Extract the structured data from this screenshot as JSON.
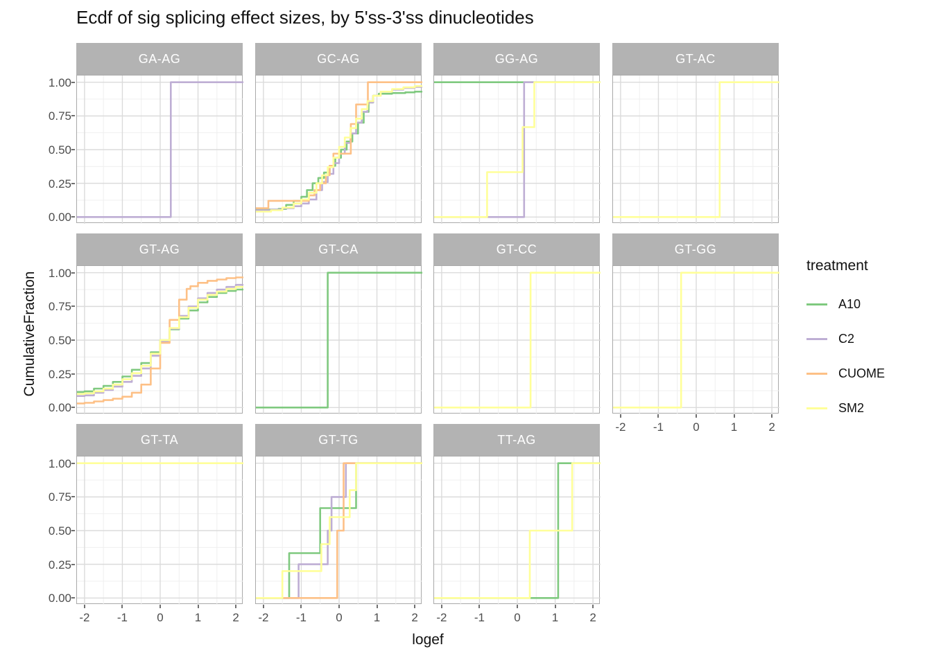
{
  "title": "Ecdf of sig splicing effect sizes, by 5'ss-3'ss dinucleotides",
  "legend": {
    "title": "treatment",
    "entries": [
      {
        "name": "A10",
        "color": "#7FC97F"
      },
      {
        "name": "C2",
        "color": "#BEAED4"
      },
      {
        "name": "CUOME",
        "color": "#FDC086"
      },
      {
        "name": "SM2",
        "color": "#FFFF99"
      }
    ]
  },
  "chart_data": {
    "type": "line",
    "step": true,
    "title": "Ecdf of sig splicing effect sizes, by 5'ss-3'ss dinucleotides",
    "xlabel": "logef",
    "ylabel": "CumulativeFraction",
    "x_domain": [
      -2.2,
      2.2
    ],
    "y_domain": [
      -0.05,
      1.05
    ],
    "x_ticks": [
      {
        "v": -2,
        "label": "-2"
      },
      {
        "v": -1,
        "label": "-1"
      },
      {
        "v": 0,
        "label": "0"
      },
      {
        "v": 1,
        "label": "1"
      },
      {
        "v": 2,
        "label": "2"
      }
    ],
    "y_ticks": [
      {
        "v": 0.0,
        "label": "0.00"
      },
      {
        "v": 0.25,
        "label": "0.25"
      },
      {
        "v": 0.5,
        "label": "0.50"
      },
      {
        "v": 0.75,
        "label": "0.75"
      },
      {
        "v": 1.0,
        "label": "1.00"
      }
    ],
    "x_minor": [
      -1.5,
      -0.5,
      0.5,
      1.5
    ],
    "y_minor": [
      0.125,
      0.375,
      0.625,
      0.875
    ],
    "grid": {
      "major_color": "#dbdbdb",
      "minor_color": "#efefef"
    },
    "legend_position": "right",
    "series_colors": {
      "A10": "#7FC97F",
      "C2": "#BEAED4",
      "CUOME": "#FDC086",
      "SM2": "#FFFF99"
    },
    "facets": [
      {
        "name": "GA-AG",
        "row": 0,
        "col": 0,
        "show_x_axis": false,
        "series": [
          {
            "name": "C2",
            "points": [
              [
                -2.2,
                0
              ],
              [
                0.28,
                1
              ]
            ]
          }
        ]
      },
      {
        "name": "GC-AG",
        "row": 0,
        "col": 1,
        "show_x_axis": false,
        "series": [
          {
            "name": "A10",
            "points": [
              [
                -2.2,
                0.055
              ],
              [
                -1.6,
                0.06
              ],
              [
                -1.4,
                0.09
              ],
              [
                -1.2,
                0.12
              ],
              [
                -1.0,
                0.15
              ],
              [
                -0.85,
                0.2
              ],
              [
                -0.7,
                0.25
              ],
              [
                -0.55,
                0.29
              ],
              [
                -0.4,
                0.33
              ],
              [
                -0.25,
                0.38
              ],
              [
                -0.1,
                0.44
              ],
              [
                0.05,
                0.5
              ],
              [
                0.2,
                0.56
              ],
              [
                0.35,
                0.62
              ],
              [
                0.5,
                0.7
              ],
              [
                0.65,
                0.78
              ],
              [
                0.78,
                0.85
              ],
              [
                0.9,
                0.9
              ],
              [
                1.05,
                0.915
              ],
              [
                1.4,
                0.92
              ],
              [
                1.75,
                0.925
              ],
              [
                2.0,
                0.93
              ]
            ]
          },
          {
            "name": "C2",
            "points": [
              [
                -2.2,
                0.05
              ],
              [
                -1.8,
                0.055
              ],
              [
                -1.5,
                0.065
              ],
              [
                -1.2,
                0.08
              ],
              [
                -1.0,
                0.1
              ],
              [
                -0.8,
                0.13
              ],
              [
                -0.6,
                0.2
              ],
              [
                -0.45,
                0.26
              ],
              [
                -0.3,
                0.32
              ],
              [
                -0.15,
                0.4
              ],
              [
                0.0,
                0.47
              ],
              [
                0.15,
                0.55
              ],
              [
                0.3,
                0.62
              ],
              [
                0.45,
                0.7
              ],
              [
                0.6,
                0.78
              ],
              [
                0.75,
                0.85
              ],
              [
                0.9,
                0.9
              ],
              [
                1.1,
                0.93
              ],
              [
                1.4,
                0.945
              ],
              [
                1.7,
                0.958
              ],
              [
                2.0,
                0.965
              ]
            ]
          },
          {
            "name": "CUOME",
            "points": [
              [
                -2.2,
                0.065
              ],
              [
                -1.87,
                0.12
              ],
              [
                -0.8,
                0.16
              ],
              [
                -0.65,
                0.2
              ],
              [
                -0.5,
                0.25
              ],
              [
                -0.35,
                0.31
              ],
              [
                -0.25,
                0.38
              ],
              [
                -0.15,
                0.47
              ],
              [
                0.31,
                0.69
              ],
              [
                0.45,
                0.835
              ],
              [
                0.76,
                1
              ]
            ]
          },
          {
            "name": "SM2",
            "points": [
              [
                -2.2,
                0.04
              ],
              [
                -1.8,
                0.05
              ],
              [
                -1.5,
                0.07
              ],
              [
                -1.2,
                0.1
              ],
              [
                -1.0,
                0.13
              ],
              [
                -0.8,
                0.18
              ],
              [
                -0.6,
                0.25
              ],
              [
                -0.45,
                0.31
              ],
              [
                -0.3,
                0.37
              ],
              [
                -0.15,
                0.44
              ],
              [
                0.0,
                0.52
              ],
              [
                0.15,
                0.59
              ],
              [
                0.3,
                0.66
              ],
              [
                0.45,
                0.73
              ],
              [
                0.6,
                0.8
              ],
              [
                0.75,
                0.86
              ],
              [
                0.9,
                0.9
              ],
              [
                1.1,
                0.93
              ],
              [
                1.4,
                0.95
              ],
              [
                1.7,
                0.962
              ],
              [
                2.0,
                0.972
              ]
            ]
          }
        ]
      },
      {
        "name": "GG-AG",
        "row": 0,
        "col": 2,
        "show_x_axis": false,
        "series": [
          {
            "name": "A10",
            "points": [
              [
                -2.2,
                1
              ]
            ]
          },
          {
            "name": "C2",
            "points": [
              [
                -2.2,
                0
              ],
              [
                0.18,
                1
              ]
            ]
          },
          {
            "name": "SM2",
            "points": [
              [
                -2.2,
                0
              ],
              [
                -0.8,
                0.333
              ],
              [
                0.14,
                0.667
              ],
              [
                0.45,
                1
              ]
            ]
          }
        ]
      },
      {
        "name": "GT-AC",
        "row": 0,
        "col": 3,
        "show_x_axis": false,
        "series": [
          {
            "name": "SM2",
            "points": [
              [
                -2.2,
                0
              ],
              [
                0.62,
                1
              ]
            ]
          }
        ]
      },
      {
        "name": "GT-AG",
        "row": 1,
        "col": 0,
        "show_x_axis": false,
        "series": [
          {
            "name": "A10",
            "points": [
              [
                -2.2,
                0.115
              ],
              [
                -2.0,
                0.12
              ],
              [
                -1.75,
                0.14
              ],
              [
                -1.5,
                0.16
              ],
              [
                -1.25,
                0.19
              ],
              [
                -1.0,
                0.23
              ],
              [
                -0.75,
                0.28
              ],
              [
                -0.5,
                0.33
              ],
              [
                -0.25,
                0.41
              ],
              [
                0,
                0.5
              ],
              [
                0.25,
                0.58
              ],
              [
                0.5,
                0.66
              ],
              [
                0.75,
                0.72
              ],
              [
                1.0,
                0.78
              ],
              [
                1.25,
                0.82
              ],
              [
                1.5,
                0.85
              ],
              [
                1.75,
                0.865
              ],
              [
                2.0,
                0.875
              ]
            ]
          },
          {
            "name": "C2",
            "points": [
              [
                -2.2,
                0.085
              ],
              [
                -2.0,
                0.09
              ],
              [
                -1.75,
                0.11
              ],
              [
                -1.5,
                0.13
              ],
              [
                -1.25,
                0.155
              ],
              [
                -1.0,
                0.19
              ],
              [
                -0.75,
                0.235
              ],
              [
                -0.5,
                0.29
              ],
              [
                -0.25,
                0.385
              ],
              [
                0,
                0.49
              ],
              [
                0.25,
                0.585
              ],
              [
                0.5,
                0.68
              ],
              [
                0.75,
                0.75
              ],
              [
                1.0,
                0.81
              ],
              [
                1.25,
                0.85
              ],
              [
                1.5,
                0.875
              ],
              [
                1.75,
                0.895
              ],
              [
                2.0,
                0.91
              ]
            ]
          },
          {
            "name": "CUOME",
            "points": [
              [
                -2.2,
                0.03
              ],
              [
                -2.0,
                0.035
              ],
              [
                -1.75,
                0.045
              ],
              [
                -1.5,
                0.055
              ],
              [
                -1.25,
                0.065
              ],
              [
                -1.0,
                0.08
              ],
              [
                -0.75,
                0.11
              ],
              [
                -0.5,
                0.17
              ],
              [
                -0.25,
                0.29
              ],
              [
                0,
                0.48
              ],
              [
                0.25,
                0.65
              ],
              [
                0.5,
                0.8
              ],
              [
                0.7,
                0.88
              ],
              [
                0.8,
                0.9
              ],
              [
                1.0,
                0.925
              ],
              [
                1.25,
                0.94
              ],
              [
                1.5,
                0.95
              ],
              [
                1.75,
                0.96
              ],
              [
                2.0,
                0.965
              ]
            ]
          },
          {
            "name": "SM2",
            "points": [
              [
                -2.2,
                0.1
              ],
              [
                -2.0,
                0.105
              ],
              [
                -1.75,
                0.12
              ],
              [
                -1.5,
                0.14
              ],
              [
                -1.25,
                0.17
              ],
              [
                -1.0,
                0.21
              ],
              [
                -0.75,
                0.255
              ],
              [
                -0.5,
                0.31
              ],
              [
                -0.25,
                0.4
              ],
              [
                0,
                0.5
              ],
              [
                0.25,
                0.59
              ],
              [
                0.5,
                0.67
              ],
              [
                0.75,
                0.74
              ],
              [
                1.0,
                0.8
              ],
              [
                1.25,
                0.835
              ],
              [
                1.5,
                0.86
              ],
              [
                1.75,
                0.88
              ],
              [
                2.0,
                0.895
              ]
            ]
          }
        ]
      },
      {
        "name": "GT-CA",
        "row": 1,
        "col": 1,
        "show_x_axis": false,
        "series": [
          {
            "name": "A10",
            "points": [
              [
                -2.2,
                0
              ],
              [
                -0.3,
                1
              ]
            ]
          }
        ]
      },
      {
        "name": "GT-CC",
        "row": 1,
        "col": 2,
        "show_x_axis": false,
        "series": [
          {
            "name": "SM2",
            "points": [
              [
                -2.2,
                0
              ],
              [
                0.35,
                1
              ]
            ]
          }
        ]
      },
      {
        "name": "GT-GG",
        "row": 1,
        "col": 3,
        "show_x_axis": true,
        "series": [
          {
            "name": "SM2",
            "points": [
              [
                -2.2,
                0
              ],
              [
                -0.4,
                1
              ]
            ]
          }
        ]
      },
      {
        "name": "GT-TA",
        "row": 2,
        "col": 0,
        "show_x_axis": true,
        "series": [
          {
            "name": "SM2",
            "points": [
              [
                -2.2,
                1
              ]
            ]
          }
        ]
      },
      {
        "name": "GT-TG",
        "row": 2,
        "col": 1,
        "show_x_axis": true,
        "series": [
          {
            "name": "A10",
            "points": [
              [
                -2.2,
                0
              ],
              [
                -1.32,
                0.333
              ],
              [
                -0.5,
                0.667
              ],
              [
                0.45,
                1
              ]
            ]
          },
          {
            "name": "C2",
            "points": [
              [
                -2.2,
                0
              ],
              [
                -1.07,
                0.25
              ],
              [
                -0.3,
                0.5
              ],
              [
                -0.2,
                0.75
              ],
              [
                0.18,
                1
              ]
            ]
          },
          {
            "name": "CUOME",
            "points": [
              [
                -2.2,
                0
              ],
              [
                -0.05,
                0.5
              ],
              [
                0.12,
                1
              ]
            ]
          },
          {
            "name": "SM2",
            "points": [
              [
                -2.2,
                0
              ],
              [
                -1.5,
                0.2
              ],
              [
                -0.47,
                0.4
              ],
              [
                -0.25,
                0.6
              ],
              [
                0.28,
                0.8
              ],
              [
                0.45,
                1
              ]
            ]
          }
        ]
      },
      {
        "name": "TT-AG",
        "row": 2,
        "col": 2,
        "show_x_axis": true,
        "series": [
          {
            "name": "A10",
            "points": [
              [
                -2.2,
                0
              ],
              [
                1.08,
                1
              ]
            ]
          },
          {
            "name": "SM2",
            "points": [
              [
                -2.2,
                0
              ],
              [
                0.33,
                0.5
              ],
              [
                1.45,
                1
              ]
            ]
          }
        ]
      }
    ]
  }
}
